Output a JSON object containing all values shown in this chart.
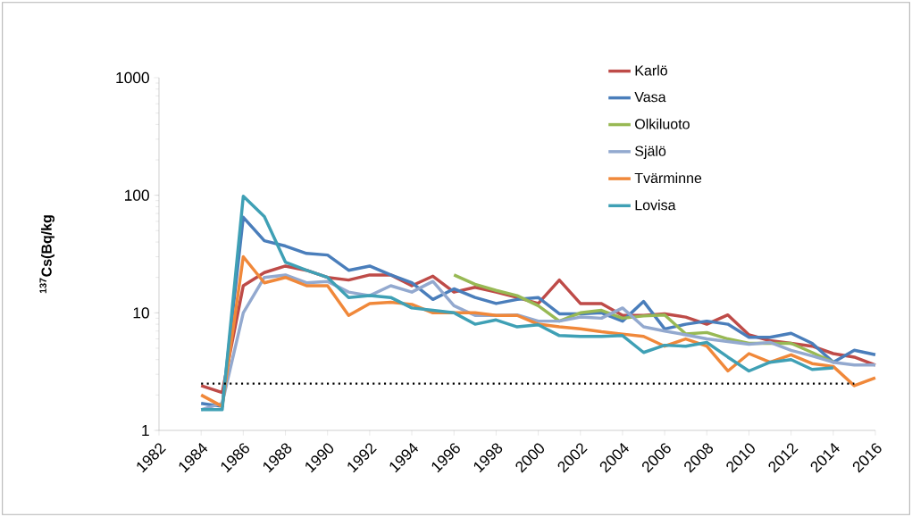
{
  "chart_data": {
    "type": "line",
    "ylabel": "$^{137}$Cs(Bq/kg",
    "x": [
      1984,
      1985,
      1986,
      1987,
      1988,
      1989,
      1990,
      1991,
      1992,
      1993,
      1994,
      1995,
      1996,
      1997,
      1998,
      1999,
      2000,
      2001,
      2002,
      2003,
      2004,
      2005,
      2006,
      2007,
      2008,
      2009,
      2010,
      2011,
      2012,
      2013,
      2014,
      2015,
      2016
    ],
    "series": [
      {
        "name": "Karlö",
        "color": "#be4b48",
        "values": [
          2.4,
          2.1,
          17,
          22,
          25,
          23,
          20,
          19,
          21,
          21,
          17,
          20.5,
          15,
          16.5,
          15,
          13.5,
          12,
          19,
          12,
          12,
          9.5,
          9.5,
          9.8,
          9.2,
          8,
          9.6,
          6.5,
          5.8,
          5.5,
          5.2,
          4.5,
          4.2,
          3.6
        ]
      },
      {
        "name": "Vasa",
        "color": "#4a7ebb",
        "values": [
          1.7,
          1.6,
          65,
          41,
          37,
          32,
          31,
          23,
          25,
          21,
          18,
          13,
          16,
          13.5,
          12,
          13,
          13.5,
          9.8,
          9.8,
          10,
          8.5,
          12.5,
          7.3,
          8,
          8.5,
          8,
          6.2,
          6.2,
          6.7,
          5.5,
          3.8,
          4.8,
          4.4
        ]
      },
      {
        "name": "Olkiluoto",
        "color": "#98b954",
        "values": [
          null,
          null,
          null,
          null,
          null,
          null,
          null,
          null,
          null,
          null,
          null,
          null,
          21,
          17.5,
          15.5,
          14,
          11.5,
          8.5,
          10,
          10.5,
          9,
          9.4,
          9.6,
          6.6,
          6.8,
          6,
          5.5,
          5.5,
          5.5,
          4.6,
          3.8,
          null,
          null
        ]
      },
      {
        "name": "Själö",
        "color": "#93a9cf",
        "values": [
          1.5,
          1.7,
          10,
          20,
          21,
          18,
          18.5,
          15,
          14,
          17,
          15,
          18.5,
          11.5,
          9.5,
          9.5,
          9.6,
          8.5,
          8.5,
          9.2,
          9,
          11,
          7.6,
          7,
          6.5,
          6,
          5.7,
          5.4,
          5.6,
          4.8,
          4.3,
          3.8,
          3.6,
          3.6
        ]
      },
      {
        "name": "Tvärminne",
        "color": "#f0883a",
        "values": [
          2.0,
          1.6,
          30,
          18,
          20,
          17,
          17,
          9.5,
          12,
          12.3,
          11.8,
          10,
          10,
          10,
          9.5,
          9.5,
          8,
          7.6,
          7.3,
          6.9,
          6.6,
          6.3,
          5.2,
          6,
          5.2,
          3.2,
          4.5,
          3.8,
          4.4,
          3.7,
          3.5,
          2.4,
          2.8
        ]
      },
      {
        "name": "Lovisa",
        "color": "#3fa0b5",
        "values": [
          1.5,
          1.5,
          98,
          66,
          27,
          23,
          20,
          13.5,
          14,
          13.5,
          11,
          10.5,
          10,
          8,
          8.7,
          7.6,
          7.9,
          6.4,
          6.3,
          6.3,
          6.4,
          4.6,
          5.3,
          5.2,
          5.6,
          4.2,
          3.2,
          3.8,
          4,
          3.3,
          3.4,
          null,
          null
        ]
      }
    ],
    "ref_lines": [
      {
        "axis": "y",
        "value": 2.5,
        "color": "#000000",
        "line_style": "dotted"
      }
    ],
    "xlim": [
      1982,
      2016
    ],
    "ylim": [
      1,
      1000
    ],
    "xticks": [
      1982,
      1984,
      1986,
      1988,
      1990,
      1992,
      1994,
      1996,
      1998,
      2000,
      2002,
      2004,
      2006,
      2008,
      2010,
      2012,
      2014,
      2016
    ],
    "yticks": [
      1,
      10,
      100,
      1000
    ],
    "log": "y",
    "grid": false,
    "legend": "top right",
    "marker": "none",
    "line_style": "solid"
  }
}
